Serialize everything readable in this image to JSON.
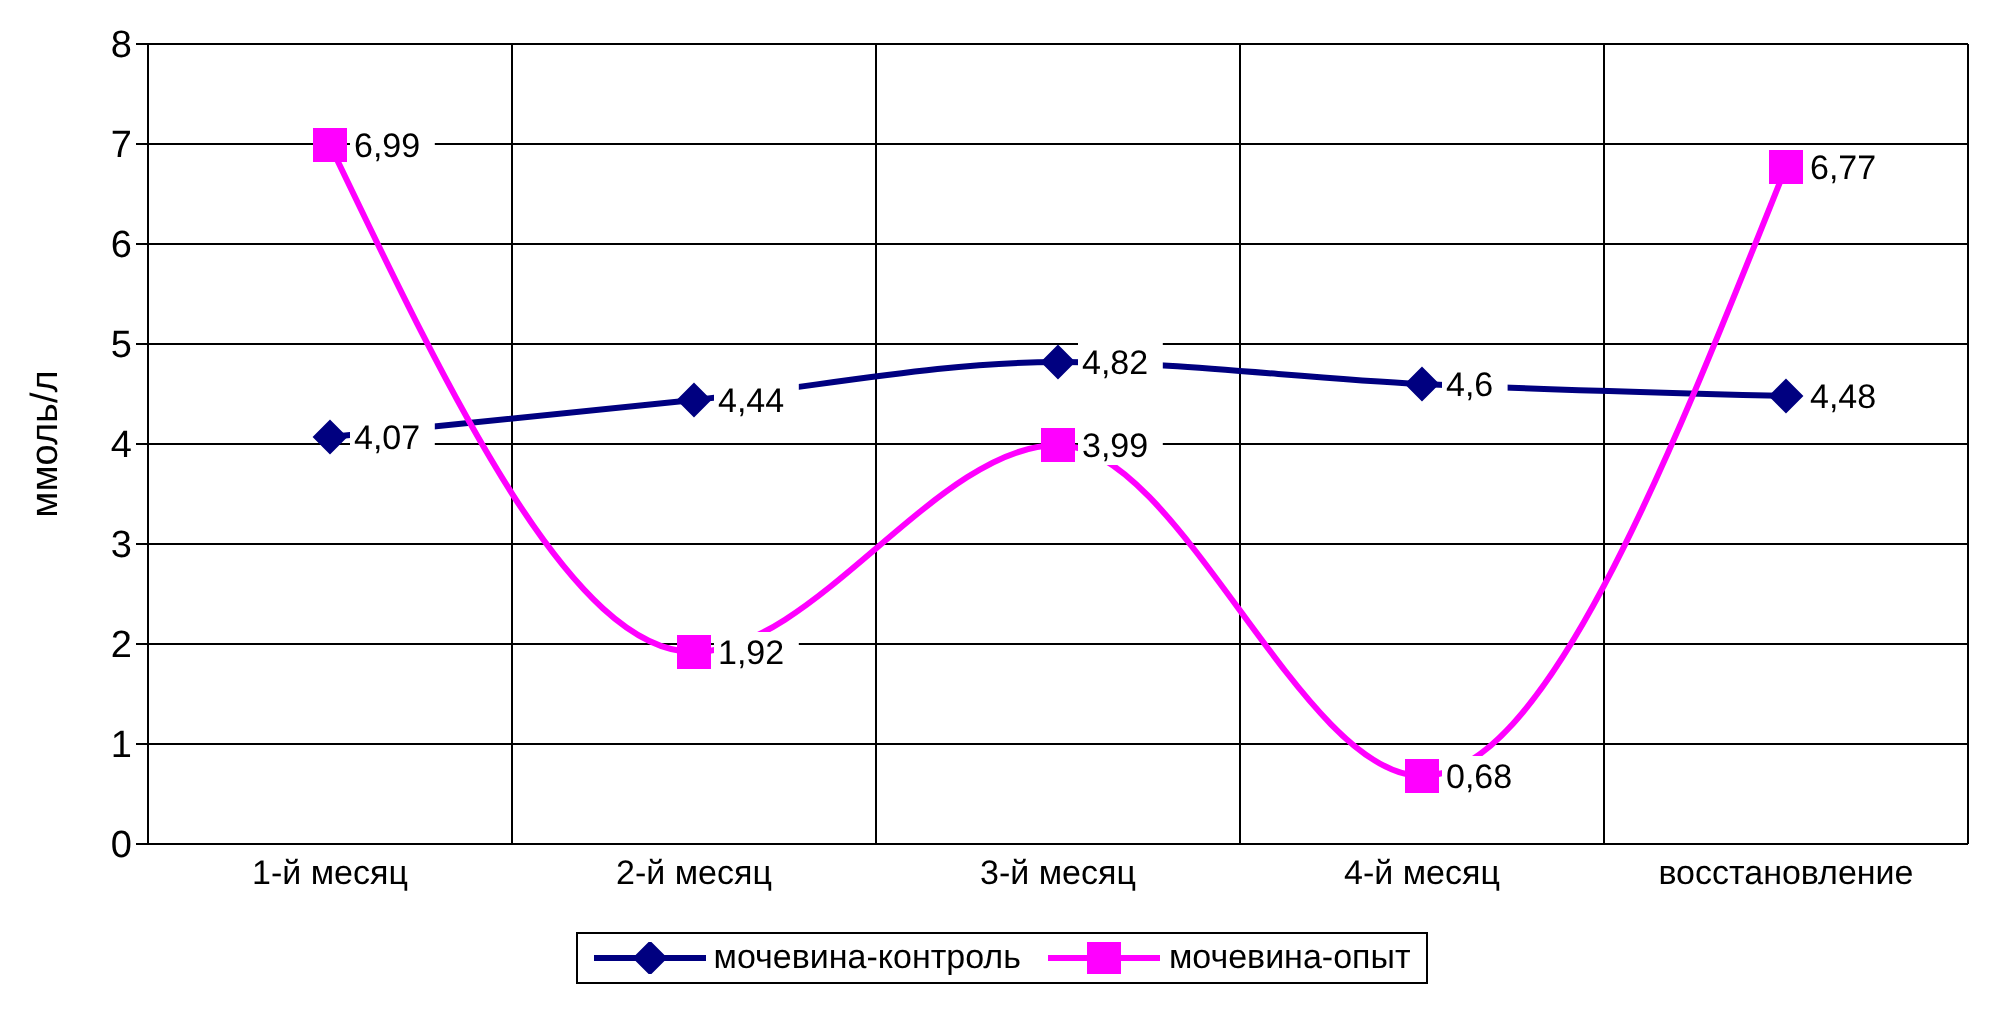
{
  "chart_data": {
    "type": "line",
    "ylabel": "ммоль/л",
    "categories": [
      "1-й месяц",
      "2-й месяц",
      "3-й месяц",
      "4-й месяц",
      "восстановление"
    ],
    "series": [
      {
        "name": "мочевина-контроль",
        "color": "#000080",
        "marker": "diamond",
        "values": [
          4.07,
          4.44,
          4.82,
          4.6,
          4.48
        ],
        "value_labels": [
          "4,07",
          "4,44",
          "4,82",
          "4,6",
          "4,48"
        ]
      },
      {
        "name": "мочевина-опыт",
        "color": "#ff00ff",
        "marker": "square",
        "values": [
          6.99,
          1.92,
          3.99,
          0.68,
          6.77
        ],
        "value_labels": [
          "6,99",
          "1,92",
          "3,99",
          "0,68",
          "6,77"
        ]
      }
    ],
    "ylim": [
      0,
      8
    ],
    "yticks": [
      0,
      1,
      2,
      3,
      4,
      5,
      6,
      7,
      8
    ],
    "grid": true,
    "legend": "bottom",
    "line_style": "solid"
  }
}
